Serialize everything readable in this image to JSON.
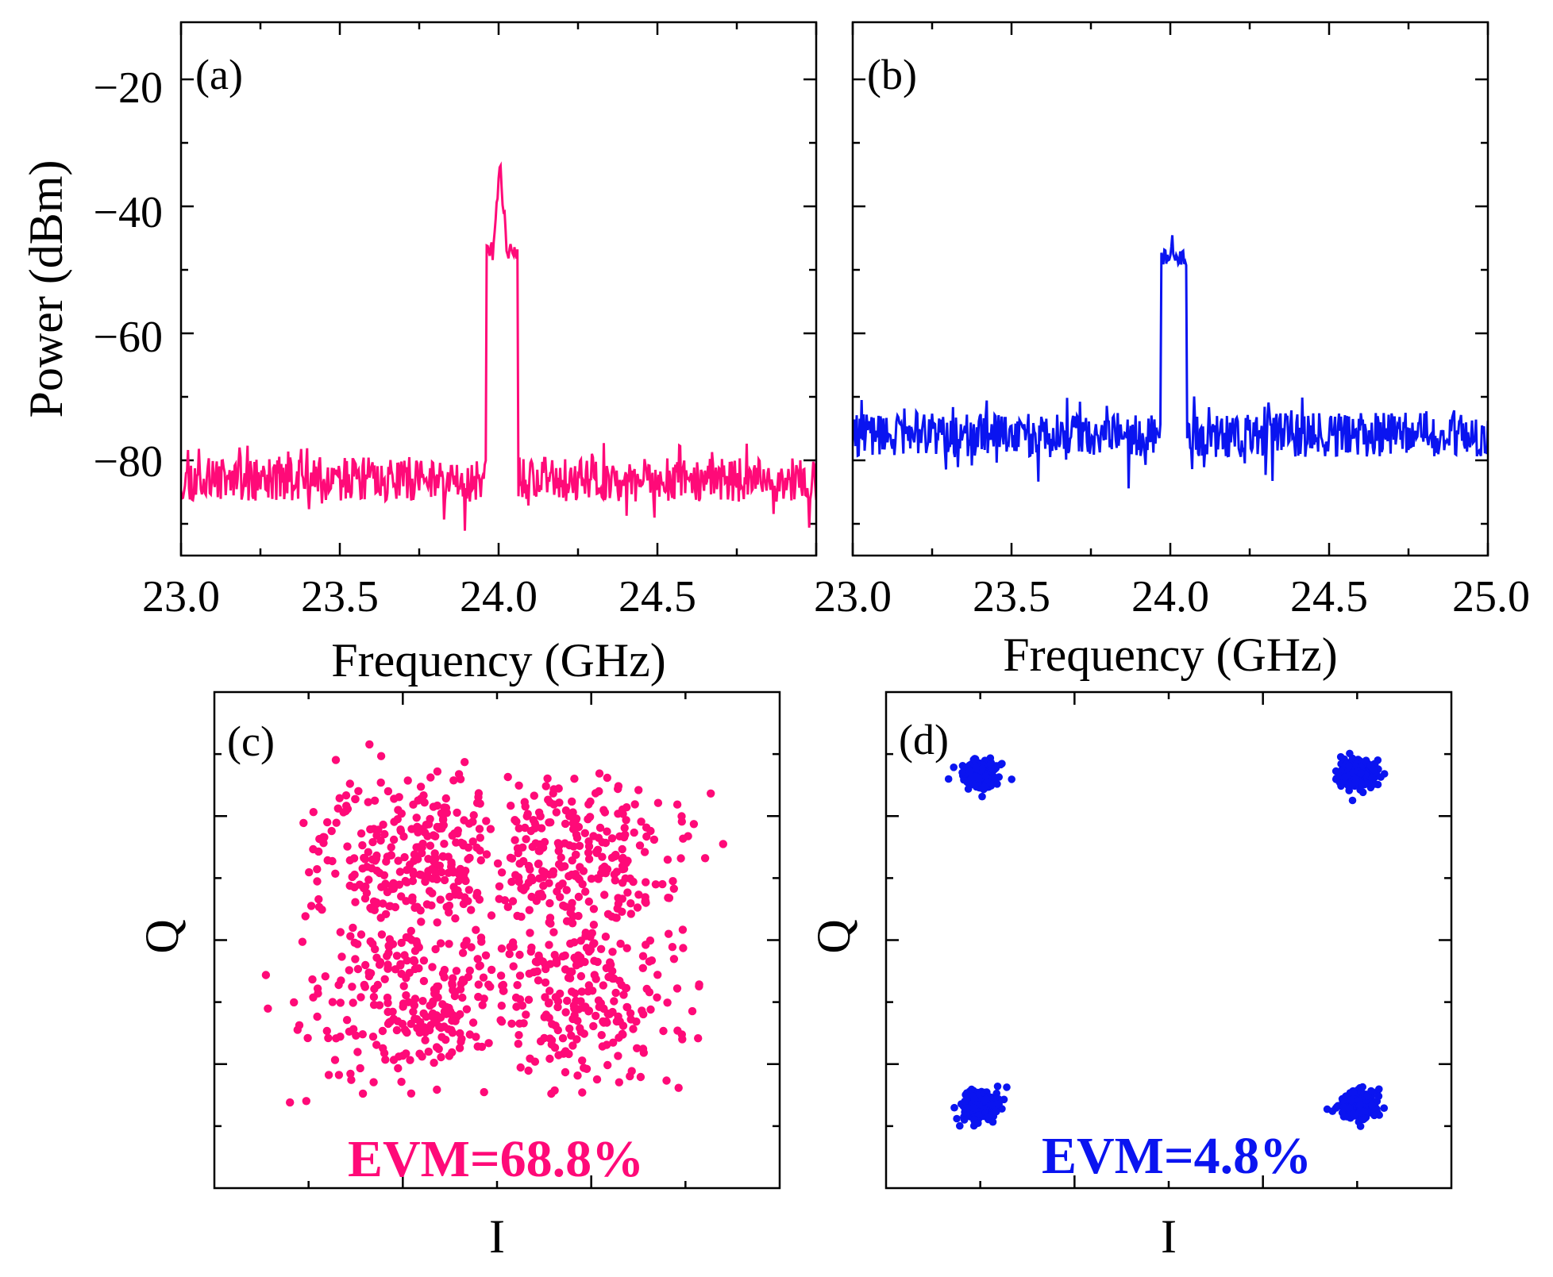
{
  "colors": {
    "pink": "#ff0a78",
    "blue": "#0a14f0"
  },
  "chart_data": [
    {
      "id": "a",
      "type": "line",
      "panel_label": "(a)",
      "xlabel": "Frequency (GHz)",
      "ylabel": "Power (dBm)",
      "xlim": [
        23.0,
        25.0
      ],
      "ylim": [
        -95,
        -11
      ],
      "xticks": [
        23.0,
        23.5,
        24.0,
        24.5
      ],
      "xtick_labels": [
        "23.0",
        "23.5",
        "24.0",
        "24.5"
      ],
      "yticks": [
        -20,
        -40,
        -60,
        -80
      ],
      "ytick_labels": [
        "−20",
        "−40",
        "−60",
        "−80"
      ],
      "series": [
        {
          "color": "#ff0a78",
          "noise_floor_dBm": -83,
          "noise_pp_dB": 7,
          "signal_band_GHz": [
            23.96,
            24.06
          ],
          "signal_top_dBm": -47,
          "peak_dBm": -34,
          "peak_freq_GHz": 24.0
        }
      ]
    },
    {
      "id": "b",
      "type": "line",
      "panel_label": "(b)",
      "xlabel": "Frequency (GHz)",
      "xlim": [
        23.0,
        25.0
      ],
      "ylim": [
        -95,
        -11
      ],
      "xticks": [
        23.0,
        23.5,
        24.0,
        24.5,
        25.0
      ],
      "xtick_labels": [
        "23.0",
        "23.5",
        "24.0",
        "24.5",
        "25.0"
      ],
      "yticks": [
        -20,
        -40,
        -60,
        -80
      ],
      "series": [
        {
          "color": "#0a14f0",
          "noise_floor_dBm": -76,
          "noise_pp_dB": 7,
          "signal_band_GHz": [
            23.97,
            24.05
          ],
          "signal_top_dBm": -48,
          "peak_dBm": -46,
          "peak_freq_GHz": 24.0
        }
      ]
    },
    {
      "id": "c",
      "type": "scatter",
      "panel_label": "(c)",
      "xlabel": "I",
      "ylabel": "Q",
      "annotation": "EVM=68.8%",
      "xlim": [
        -1.6,
        1.6
      ],
      "ylim": [
        -1.45,
        1.35
      ],
      "series": [
        {
          "color": "#ff0a78",
          "point_count": 1024,
          "distribution": "dispersed cloud",
          "x_extent": [
            -1.35,
            1.35
          ],
          "y_extent": [
            -1.05,
            1.1
          ]
        }
      ]
    },
    {
      "id": "d",
      "type": "scatter",
      "panel_label": "(d)",
      "xlabel": "I",
      "ylabel": "Q",
      "annotation": "EVM=4.8%",
      "xlim": [
        -1.5,
        1.5
      ],
      "ylim": [
        -1.5,
        1.5
      ],
      "series": [
        {
          "color": "#0a14f0",
          "point_count": 1024,
          "distribution": "QPSK clusters",
          "cluster_centers": [
            [
              -1,
              1
            ],
            [
              1,
              1
            ],
            [
              -1,
              -1
            ],
            [
              1,
              -1
            ]
          ],
          "spread": 0.048
        }
      ]
    }
  ]
}
